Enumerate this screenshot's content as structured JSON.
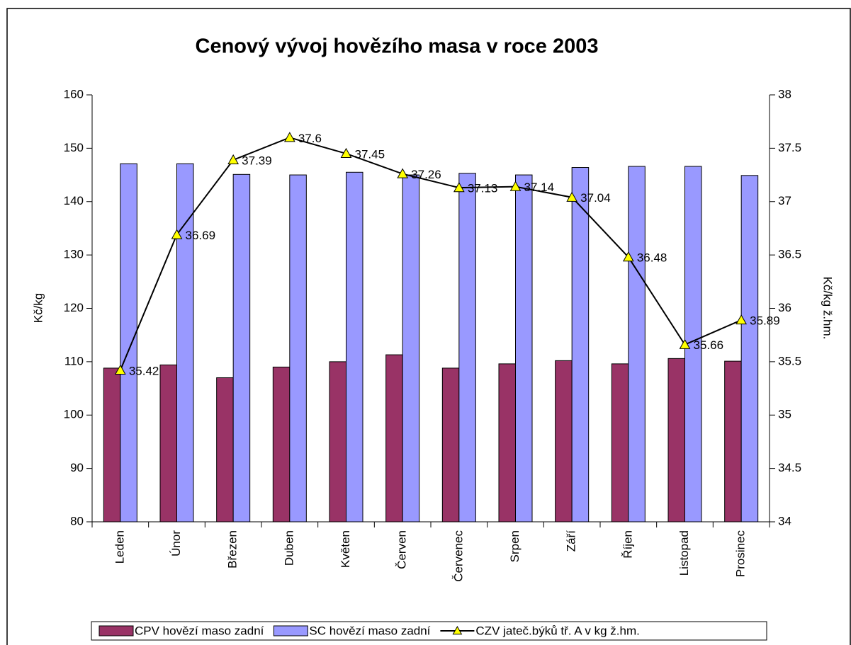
{
  "chart_data": {
    "type": "bar",
    "title": "Cenový vývoj  hovězího masa v roce 2003",
    "ylabel": "Kč/kg",
    "y2label": "Kč/kg ž.hm.",
    "categories": [
      "Leden",
      "Únor",
      "Březen",
      "Duben",
      "Květen",
      "Červen",
      "Červenec",
      "Srpen",
      "Září",
      "Říjen",
      "Listopad",
      "Prosinec"
    ],
    "series": [
      {
        "name": "CPV hovězí maso zadní",
        "type": "bar",
        "color": "#993366",
        "values": [
          108.8,
          109.4,
          107.0,
          109.0,
          110.0,
          111.3,
          108.8,
          109.6,
          110.2,
          109.6,
          110.6,
          110.1
        ]
      },
      {
        "name": "SC hovězí maso zadní",
        "type": "bar",
        "color": "#9999ff",
        "values": [
          147.1,
          147.1,
          145.1,
          145.0,
          145.5,
          145.0,
          145.3,
          145.0,
          146.4,
          146.6,
          146.6,
          144.9
        ]
      },
      {
        "name": "CZV jateč.býků tř. A v kg ž.hm.",
        "type": "line",
        "axis": "y2",
        "color": "#000000",
        "marker_color": "#ffff00",
        "values": [
          35.42,
          36.69,
          37.39,
          37.6,
          37.45,
          37.26,
          37.13,
          37.14,
          37.04,
          36.48,
          35.66,
          35.89
        ]
      }
    ],
    "ylim": [
      80,
      160
    ],
    "yticks": [
      80,
      90,
      100,
      110,
      120,
      130,
      140,
      150,
      160
    ],
    "y2lim": [
      34,
      38
    ],
    "y2ticks": [
      34,
      34.5,
      35,
      35.5,
      36,
      36.5,
      37,
      37.5,
      38
    ],
    "legend": "bottom"
  }
}
